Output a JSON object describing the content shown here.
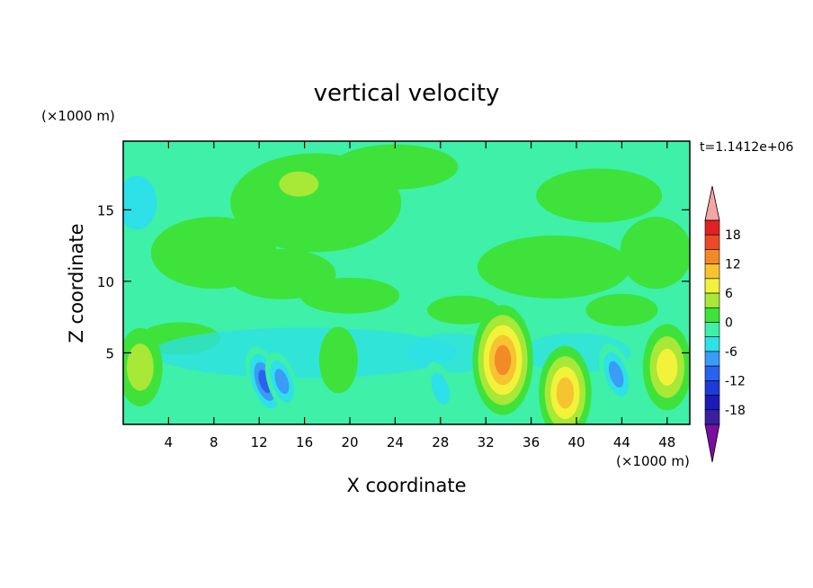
{
  "chart_data": {
    "type": "heatmap",
    "title": "vertical velocity",
    "xlabel": "X coordinate",
    "ylabel": "Z coordinate",
    "x_unit": "(×1000 m)",
    "y_unit": "(×1000 m)",
    "time_label": "t=1.1412e+06",
    "xlim": [
      0,
      50
    ],
    "ylim": [
      0,
      19.8
    ],
    "x_ticks": [
      "4",
      "8",
      "12",
      "16",
      "20",
      "24",
      "28",
      "32",
      "36",
      "40",
      "44",
      "48"
    ],
    "y_ticks": [
      "5",
      "10",
      "15"
    ],
    "colorbar": {
      "ticks": [
        "18",
        "12",
        "6",
        "0",
        "-6",
        "-12",
        "-18"
      ],
      "levels": [
        -21,
        -18,
        -15,
        -12,
        -9,
        -6,
        -3,
        0,
        3,
        6,
        9,
        12,
        15,
        18,
        21
      ],
      "colors": [
        "#7a0e9e",
        "#3a1fa0",
        "#1c1ab8",
        "#1e3ad8",
        "#2a62f0",
        "#3a9cf5",
        "#2ee0e8",
        "#3ef0a8",
        "#3fe23a",
        "#a8e836",
        "#f2f23a",
        "#f5c430",
        "#f28a28",
        "#ec4a26",
        "#e02222",
        "#f5a5a5"
      ]
    },
    "features": [
      {
        "x": 33.5,
        "z": 4.5,
        "w": 16,
        "kind": "updraft"
      },
      {
        "x": 39.0,
        "z": 2.2,
        "w": 12,
        "kind": "updraft"
      },
      {
        "x": 48.0,
        "z": 4.0,
        "w": 10,
        "kind": "updraft"
      },
      {
        "x": 1.5,
        "z": 4.0,
        "w": 8,
        "kind": "updraft"
      },
      {
        "x": 19.0,
        "z": 4.5,
        "w": 5,
        "kind": "updraft"
      },
      {
        "x": 12.5,
        "z": 3.0,
        "w": -14,
        "kind": "downdraft"
      },
      {
        "x": 14.0,
        "z": 3.0,
        "w": -10,
        "kind": "downdraft"
      },
      {
        "x": 43.5,
        "z": 3.5,
        "w": -11,
        "kind": "downdraft"
      },
      {
        "x": 28.0,
        "z": 2.5,
        "w": -8,
        "kind": "downdraft"
      }
    ]
  }
}
